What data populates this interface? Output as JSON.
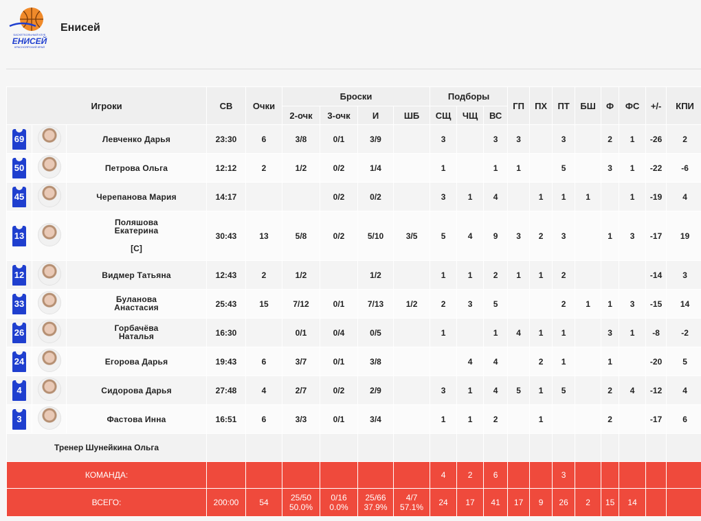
{
  "team": {
    "name": "Енисей",
    "logo_text_top": "БАСКЕТБОЛЬНЫЙ КЛУБ",
    "logo_text_main": "ЕНИСЕЙ",
    "logo_text_bottom": "КРАСНОЯРСКИЙ КРАЙ"
  },
  "headers": {
    "players": "Игроки",
    "sv": "СВ",
    "points": "Очки",
    "shots": "Броски",
    "rebounds": "Подборы",
    "two": "2-очк",
    "three": "3-очк",
    "fg": "И",
    "ft": "ШБ",
    "def": "СЩ",
    "off": "ЧЩ",
    "tot": "ВС",
    "gp": "ГП",
    "ph": "ПХ",
    "pt": "ПТ",
    "bsh": "БШ",
    "f": "Ф",
    "fs": "ФС",
    "pm": "+/-",
    "kpi": "КПИ"
  },
  "players": [
    {
      "num": "69",
      "name": "Левченко Дарья",
      "min": "23:30",
      "pts": "6",
      "p2": "3/8",
      "p3": "0/1",
      "fg": "3/9",
      "ft": "",
      "reb_d": "3",
      "reb_o": "",
      "reb_t": "3",
      "gp": "3",
      "ph": "",
      "pt": "3",
      "bsh": "",
      "f": "2",
      "fs": "1",
      "pm": "-26",
      "kpi": "2"
    },
    {
      "num": "50",
      "name": "Петрова Ольга",
      "min": "12:12",
      "pts": "2",
      "p2": "1/2",
      "p3": "0/2",
      "fg": "1/4",
      "ft": "",
      "reb_d": "1",
      "reb_o": "",
      "reb_t": "1",
      "gp": "1",
      "ph": "",
      "pt": "5",
      "bsh": "",
      "f": "3",
      "fs": "1",
      "pm": "-22",
      "kpi": "-6"
    },
    {
      "num": "45",
      "name": "Черепанова Мария",
      "min": "14:17",
      "pts": "",
      "p2": "",
      "p3": "0/2",
      "fg": "0/2",
      "ft": "",
      "reb_d": "3",
      "reb_o": "1",
      "reb_t": "4",
      "gp": "",
      "ph": "1",
      "pt": "1",
      "bsh": "1",
      "f": "",
      "fs": "1",
      "pm": "-19",
      "kpi": "4"
    },
    {
      "num": "13",
      "name": "Поляшова Екатерина",
      "captain": "[С]",
      "min": "30:43",
      "pts": "13",
      "p2": "5/8",
      "p3": "0/2",
      "fg": "5/10",
      "ft": "3/5",
      "reb_d": "5",
      "reb_o": "4",
      "reb_t": "9",
      "gp": "3",
      "ph": "2",
      "pt": "3",
      "bsh": "",
      "f": "1",
      "fs": "3",
      "pm": "-17",
      "kpi": "19"
    },
    {
      "num": "12",
      "name": "Видмер Татьяна",
      "min": "12:43",
      "pts": "2",
      "p2": "1/2",
      "p3": "",
      "fg": "1/2",
      "ft": "",
      "reb_d": "1",
      "reb_o": "1",
      "reb_t": "2",
      "gp": "1",
      "ph": "1",
      "pt": "2",
      "bsh": "",
      "f": "",
      "fs": "",
      "pm": "-14",
      "kpi": "3"
    },
    {
      "num": "33",
      "name": "Буланова Анастасия",
      "min": "25:43",
      "pts": "15",
      "p2": "7/12",
      "p3": "0/1",
      "fg": "7/13",
      "ft": "1/2",
      "reb_d": "2",
      "reb_o": "3",
      "reb_t": "5",
      "gp": "",
      "ph": "",
      "pt": "2",
      "bsh": "1",
      "f": "1",
      "fs": "3",
      "pm": "-15",
      "kpi": "14"
    },
    {
      "num": "26",
      "name": "Горбачёва Наталья",
      "min": "16:30",
      "pts": "",
      "p2": "0/1",
      "p3": "0/4",
      "fg": "0/5",
      "ft": "",
      "reb_d": "1",
      "reb_o": "",
      "reb_t": "1",
      "gp": "4",
      "ph": "1",
      "pt": "1",
      "bsh": "",
      "f": "3",
      "fs": "1",
      "pm": "-8",
      "kpi": "-2"
    },
    {
      "num": "24",
      "name": "Егорова Дарья",
      "min": "19:43",
      "pts": "6",
      "p2": "3/7",
      "p3": "0/1",
      "fg": "3/8",
      "ft": "",
      "reb_d": "",
      "reb_o": "4",
      "reb_t": "4",
      "gp": "",
      "ph": "2",
      "pt": "1",
      "bsh": "",
      "f": "1",
      "fs": "",
      "pm": "-20",
      "kpi": "5"
    },
    {
      "num": "4",
      "name": "Сидорова Дарья",
      "min": "27:48",
      "pts": "4",
      "p2": "2/7",
      "p3": "0/2",
      "fg": "2/9",
      "ft": "",
      "reb_d": "3",
      "reb_o": "1",
      "reb_t": "4",
      "gp": "5",
      "ph": "1",
      "pt": "5",
      "bsh": "",
      "f": "2",
      "fs": "4",
      "pm": "-12",
      "kpi": "4"
    },
    {
      "num": "3",
      "name": "Фастова Инна",
      "min": "16:51",
      "pts": "6",
      "p2": "3/3",
      "p3": "0/1",
      "fg": "3/4",
      "ft": "",
      "reb_d": "1",
      "reb_o": "1",
      "reb_t": "2",
      "gp": "",
      "ph": "1",
      "pt": "",
      "bsh": "",
      "f": "2",
      "fs": "",
      "pm": "-17",
      "kpi": "6"
    }
  ],
  "coach": "Тренер Шунейкина Ольга",
  "team_row": {
    "label": "КОМАНДА:",
    "reb_d": "4",
    "reb_o": "2",
    "reb_t": "6",
    "pt": "3"
  },
  "total_row": {
    "label": "ВСЕГО:",
    "min": "200:00",
    "pts": "54",
    "p2": "25/50",
    "p2_pct": "50.0%",
    "p3": "0/16",
    "p3_pct": "0.0%",
    "fg": "25/66",
    "fg_pct": "37.9%",
    "ft": "4/7",
    "ft_pct": "57.1%",
    "reb_d": "24",
    "reb_o": "17",
    "reb_t": "41",
    "gp": "17",
    "ph": "9",
    "pt": "26",
    "bsh": "2",
    "f": "15",
    "fs": "14",
    "pm": "",
    "kpi": ""
  },
  "colors": {
    "jersey": "#1f3fcf",
    "total_bg": "#ef4a3c"
  }
}
